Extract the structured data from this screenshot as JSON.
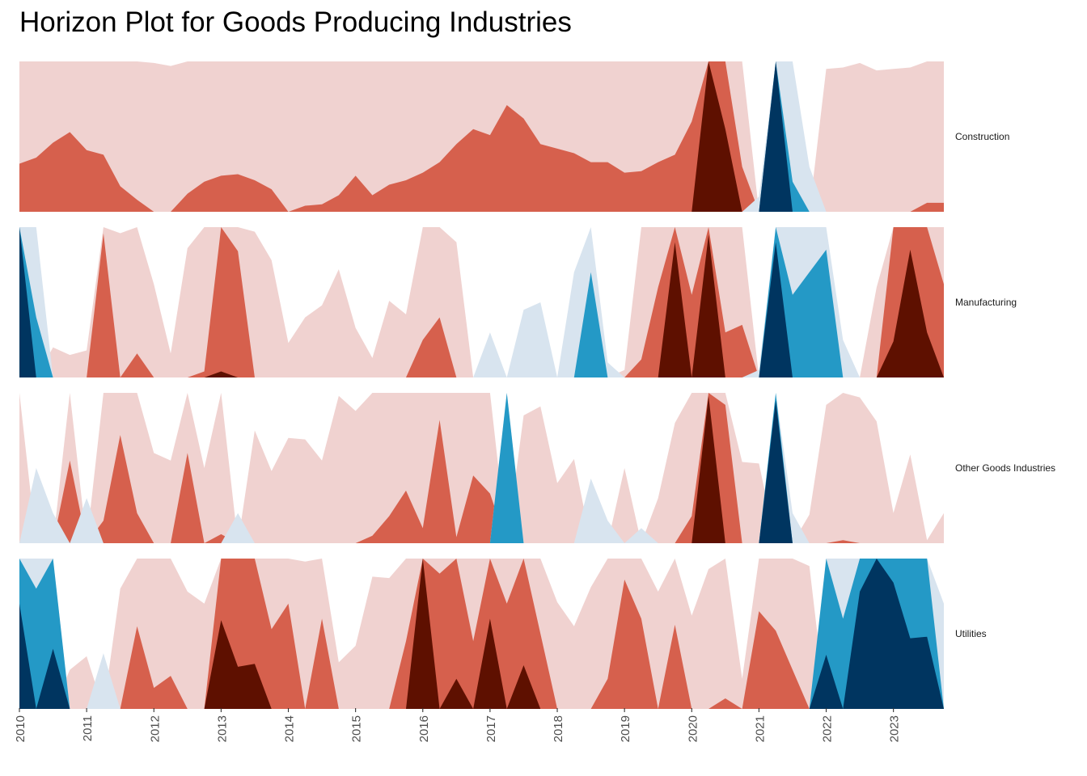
{
  "chart_data": {
    "type": "area",
    "subtype": "horizon",
    "title": "Horizon Plot for Goods Producing Industries",
    "xlabel": "",
    "ylabel": "",
    "x_tick_labels": [
      "2010",
      "2011",
      "2012",
      "2013",
      "2014",
      "2015",
      "2016",
      "2017",
      "2018",
      "2019",
      "2020",
      "2021",
      "2022",
      "2023"
    ],
    "x_range": [
      2010.0,
      2023.75
    ],
    "band_colors": {
      "positive": [
        "#f0d2d0",
        "#d6604d",
        "#5e1000"
      ],
      "negative": [
        "#d8e4ef",
        "#2499c6",
        "#003560"
      ]
    },
    "legend": "none",
    "grid": false,
    "series": [
      {
        "name": "Construction",
        "x": [
          2010.0,
          2010.25,
          2010.5,
          2010.75,
          2011.0,
          2011.25,
          2011.5,
          2011.75,
          2012.0,
          2012.25,
          2012.5,
          2012.75,
          2013.0,
          2013.25,
          2013.5,
          2013.75,
          2014.0,
          2014.25,
          2014.5,
          2014.75,
          2015.0,
          2015.25,
          2015.5,
          2015.75,
          2016.0,
          2016.25,
          2016.5,
          2016.75,
          2017.0,
          2017.25,
          2017.5,
          2017.75,
          2018.0,
          2018.25,
          2018.5,
          2018.75,
          2019.0,
          2019.25,
          2019.5,
          2019.75,
          2020.0,
          2020.25,
          2020.5,
          2020.75,
          2021.0,
          2021.25,
          2021.5,
          2021.75,
          2022.0,
          2022.25,
          2022.5,
          2022.75,
          2023.0,
          2023.25,
          2023.5,
          2023.75
        ],
        "values": [
          1.32,
          1.36,
          1.46,
          1.53,
          1.41,
          1.38,
          1.17,
          1.08,
          0.99,
          0.97,
          1.12,
          1.2,
          1.24,
          1.25,
          1.21,
          1.15,
          1.0,
          1.04,
          1.05,
          1.11,
          1.24,
          1.11,
          1.18,
          1.21,
          1.26,
          1.33,
          1.45,
          1.55,
          1.51,
          1.71,
          1.62,
          1.45,
          1.42,
          1.39,
          1.33,
          1.33,
          1.26,
          1.27,
          1.33,
          1.38,
          1.6,
          3.0,
          2.55,
          1.3,
          -0.1,
          -3.0,
          -1.2,
          -0.3,
          0.95,
          0.96,
          0.99,
          0.94,
          0.95,
          0.96,
          1.06,
          1.06
        ]
      },
      {
        "name": "Manufacturing",
        "x": [
          2010.0,
          2010.25,
          2010.5,
          2010.75,
          2011.0,
          2011.25,
          2011.5,
          2011.75,
          2012.0,
          2012.25,
          2012.5,
          2012.75,
          2013.0,
          2013.25,
          2013.5,
          2013.75,
          2014.0,
          2014.25,
          2014.5,
          2014.75,
          2015.0,
          2015.25,
          2015.5,
          2015.75,
          2016.0,
          2016.25,
          2016.5,
          2016.75,
          2017.0,
          2017.25,
          2017.5,
          2017.75,
          2018.0,
          2018.25,
          2018.5,
          2018.75,
          2019.0,
          2019.25,
          2019.5,
          2019.75,
          2020.0,
          2020.25,
          2020.5,
          2020.75,
          2021.0,
          2021.25,
          2021.5,
          2021.75,
          2022.0,
          2022.25,
          2022.5,
          2022.75,
          2023.0,
          2023.25,
          2023.5,
          2023.75
        ],
        "values": [
          -3.0,
          -1.4,
          0.2,
          0.15,
          0.18,
          1.96,
          0.96,
          1.16,
          0.62,
          0.16,
          0.86,
          1.04,
          2.04,
          1.84,
          0.97,
          0.78,
          0.23,
          0.4,
          0.48,
          0.72,
          0.33,
          0.13,
          0.51,
          0.42,
          1.25,
          1.4,
          0.9,
          0.0,
          -0.3,
          0.0,
          -0.45,
          -0.5,
          0.0,
          -0.7,
          -1.7,
          -0.1,
          0.05,
          1.12,
          1.6,
          2.9,
          1.55,
          2.95,
          1.3,
          1.35,
          -0.05,
          -2.9,
          -1.55,
          -1.7,
          -1.85,
          -0.25,
          0.0,
          0.6,
          2.24,
          2.85,
          2.3,
          1.62
        ]
      },
      {
        "name": "Other Goods Industries",
        "x": [
          2010.0,
          2010.25,
          2010.5,
          2010.75,
          2011.0,
          2011.25,
          2011.5,
          2011.75,
          2012.0,
          2012.25,
          2012.5,
          2012.75,
          2013.0,
          2013.25,
          2013.5,
          2013.75,
          2014.0,
          2014.25,
          2014.5,
          2014.75,
          2015.0,
          2015.25,
          2015.5,
          2015.75,
          2016.0,
          2016.25,
          2016.5,
          2016.75,
          2017.0,
          2017.25,
          2017.5,
          2017.75,
          2018.0,
          2018.25,
          2018.5,
          2018.75,
          2019.0,
          2019.25,
          2019.5,
          2019.75,
          2020.0,
          2020.25,
          2020.5,
          2020.75,
          2021.0,
          2021.25,
          2021.5,
          2021.75,
          2022.0,
          2022.25,
          2022.5,
          2022.75,
          2023.0,
          2023.25,
          2023.5,
          2023.75
        ],
        "values": [
          1.0,
          -0.5,
          -0.2,
          1.55,
          -0.3,
          1.15,
          1.72,
          1.2,
          0.6,
          0.55,
          1.6,
          0.5,
          1.06,
          -0.2,
          0.75,
          0.48,
          0.7,
          0.69,
          0.55,
          0.98,
          0.88,
          1.05,
          1.18,
          1.35,
          1.1,
          1.82,
          1.04,
          1.45,
          1.33,
          -2.0,
          0.85,
          0.91,
          0.4,
          0.56,
          -0.43,
          -0.15,
          0.5,
          -0.1,
          0.3,
          0.8,
          1.18,
          2.98,
          1.92,
          0.54,
          0.53,
          -2.95,
          -0.2,
          0.19,
          0.92,
          1.02,
          0.97,
          0.81,
          0.2,
          0.59,
          0.02,
          0.2
        ]
      },
      {
        "name": "Utilities",
        "x": [
          2010.0,
          2010.25,
          2010.5,
          2010.75,
          2011.0,
          2011.25,
          2011.5,
          2011.75,
          2012.0,
          2012.25,
          2012.5,
          2012.75,
          2013.0,
          2013.25,
          2013.5,
          2013.75,
          2014.0,
          2014.25,
          2014.5,
          2014.75,
          2015.0,
          2015.25,
          2015.5,
          2015.75,
          2016.0,
          2016.25,
          2016.5,
          2016.75,
          2017.0,
          2017.25,
          2017.5,
          2017.75,
          2018.0,
          2018.25,
          2018.5,
          2018.75,
          2019.0,
          2019.25,
          2019.5,
          2019.75,
          2020.0,
          2020.25,
          2020.5,
          2020.75,
          2021.0,
          2021.25,
          2021.5,
          2021.75,
          2022.0,
          2022.25,
          2022.5,
          2022.75,
          2023.0,
          2023.25,
          2023.5,
          2023.75
        ],
        "values": [
          -2.7,
          -1.8,
          -2.4,
          0.26,
          0.35,
          -0.37,
          0.8,
          1.55,
          1.14,
          1.22,
          0.78,
          0.7,
          2.59,
          2.28,
          2.3,
          1.53,
          1.7,
          0.98,
          1.6,
          0.31,
          0.42,
          0.88,
          0.87,
          1.45,
          3.0,
          1.9,
          2.2,
          1.45,
          2.6,
          1.7,
          2.29,
          1.5,
          0.71,
          0.55,
          0.81,
          1.2,
          1.86,
          1.6,
          0.78,
          1.56,
          0.62,
          0.93,
          1.07,
          0.2,
          1.65,
          1.52,
          1.26,
          0.95,
          -2.36,
          -1.6,
          -2.78,
          -3.0,
          -2.84,
          -2.47,
          -2.48,
          -0.7
        ]
      }
    ]
  }
}
